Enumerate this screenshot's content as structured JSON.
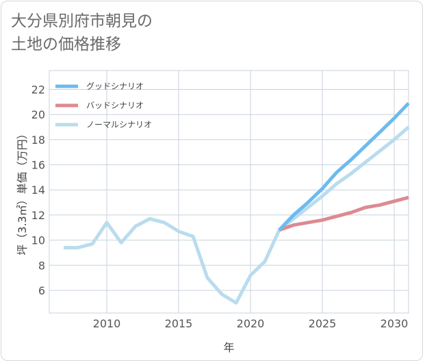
{
  "title": "大分県別府市朝見の\n土地の価格推移",
  "chart_data": {
    "type": "line",
    "xlabel": "年",
    "ylabel": "坪（3.3㎡）単価（万円）",
    "xlim": [
      2006,
      2031
    ],
    "ylim": [
      4.2,
      23.5
    ],
    "x_ticks": [
      2010,
      2015,
      2020,
      2025,
      2030
    ],
    "y_ticks": [
      6,
      8,
      10,
      12,
      14,
      16,
      18,
      20,
      22
    ],
    "legend_position": "top-left",
    "series": [
      {
        "name": "グッドシナリオ",
        "color": "#6cbbee",
        "x": [
          2022,
          2023,
          2024,
          2025,
          2026,
          2027,
          2028,
          2029,
          2030,
          2031
        ],
        "y": [
          10.8,
          12.0,
          13.0,
          14.1,
          15.4,
          16.4,
          17.5,
          18.6,
          19.7,
          20.9
        ]
      },
      {
        "name": "バッドシナリオ",
        "color": "#dd8a90",
        "x": [
          2022,
          2023,
          2024,
          2025,
          2026,
          2027,
          2028,
          2029,
          2030,
          2031
        ],
        "y": [
          10.8,
          11.2,
          11.4,
          11.6,
          11.9,
          12.2,
          12.6,
          12.8,
          13.1,
          13.4
        ]
      },
      {
        "name": "ノーマルシナリオ",
        "color": "#b9dcee",
        "x": [
          2007,
          2008,
          2009,
          2010,
          2011,
          2012,
          2013,
          2014,
          2015,
          2016,
          2017,
          2018,
          2019,
          2020,
          2021,
          2022,
          2023,
          2024,
          2025,
          2026,
          2027,
          2028,
          2029,
          2030,
          2031
        ],
        "y": [
          9.4,
          9.4,
          9.7,
          11.4,
          9.8,
          11.1,
          11.7,
          11.4,
          10.7,
          10.3,
          7.0,
          5.7,
          5.0,
          7.2,
          8.3,
          10.8,
          11.7,
          12.6,
          13.5,
          14.5,
          15.3,
          16.2,
          17.1,
          18.0,
          19.0
        ]
      }
    ]
  }
}
